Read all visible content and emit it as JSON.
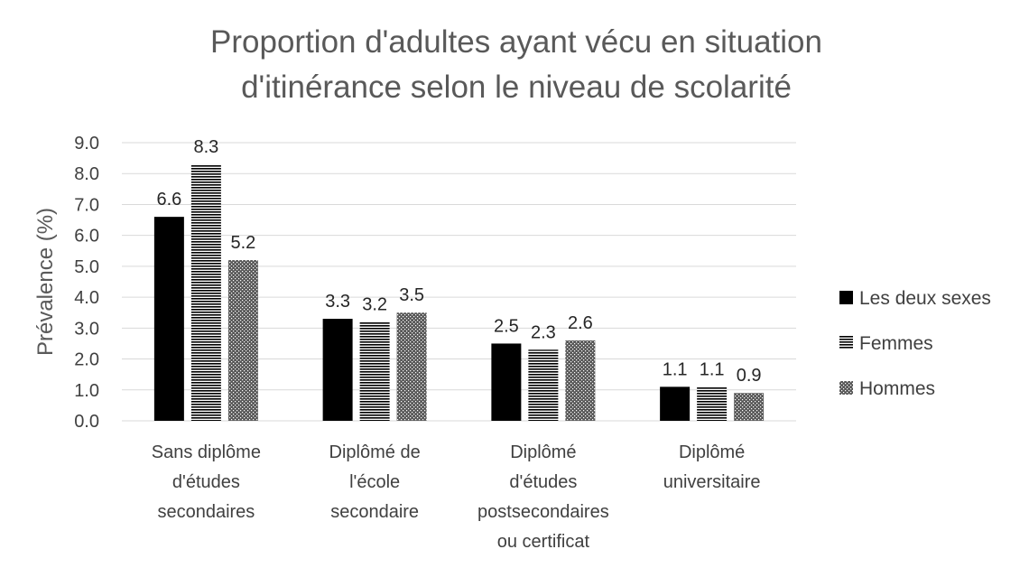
{
  "chart_data": {
    "type": "bar",
    "title_lines": [
      "Proportion d'adultes ayant vécu en situation",
      "d'itinérance selon le niveau de scolarité"
    ],
    "ylabel": "Prévalence (%)",
    "xlabel": "",
    "ylim": [
      0,
      9
    ],
    "ytick_step": 1,
    "ytick_labels": [
      "0.0",
      "1.0",
      "2.0",
      "3.0",
      "4.0",
      "5.0",
      "6.0",
      "7.0",
      "8.0",
      "9.0"
    ],
    "grid": true,
    "legend_position": "right",
    "categories": [
      [
        "Sans diplôme",
        "d'études",
        "secondaires"
      ],
      [
        "Diplômé de",
        "l'école",
        "secondaire"
      ],
      [
        "Diplômé",
        "d'études",
        "postsecondaires",
        "ou certificat"
      ],
      [
        "Diplômé",
        "universitaire"
      ]
    ],
    "series": [
      {
        "name": "Les deux sexes",
        "pattern": "solid",
        "color": "#000000",
        "values": [
          6.6,
          3.3,
          2.5,
          1.1
        ],
        "labels": [
          "6.6",
          "3.3",
          "2.5",
          "1.1"
        ]
      },
      {
        "name": "Femmes",
        "pattern": "horizontal-stripes",
        "color": "#000000",
        "values": [
          8.3,
          3.2,
          2.3,
          1.1
        ],
        "labels": [
          "8.3",
          "3.2",
          "2.3",
          "1.1"
        ]
      },
      {
        "name": "Hommes",
        "pattern": "dots",
        "color": "#595959",
        "values": [
          5.2,
          3.5,
          2.6,
          0.9
        ],
        "labels": [
          "5.2",
          "3.5",
          "2.6",
          "0.9"
        ]
      }
    ]
  }
}
